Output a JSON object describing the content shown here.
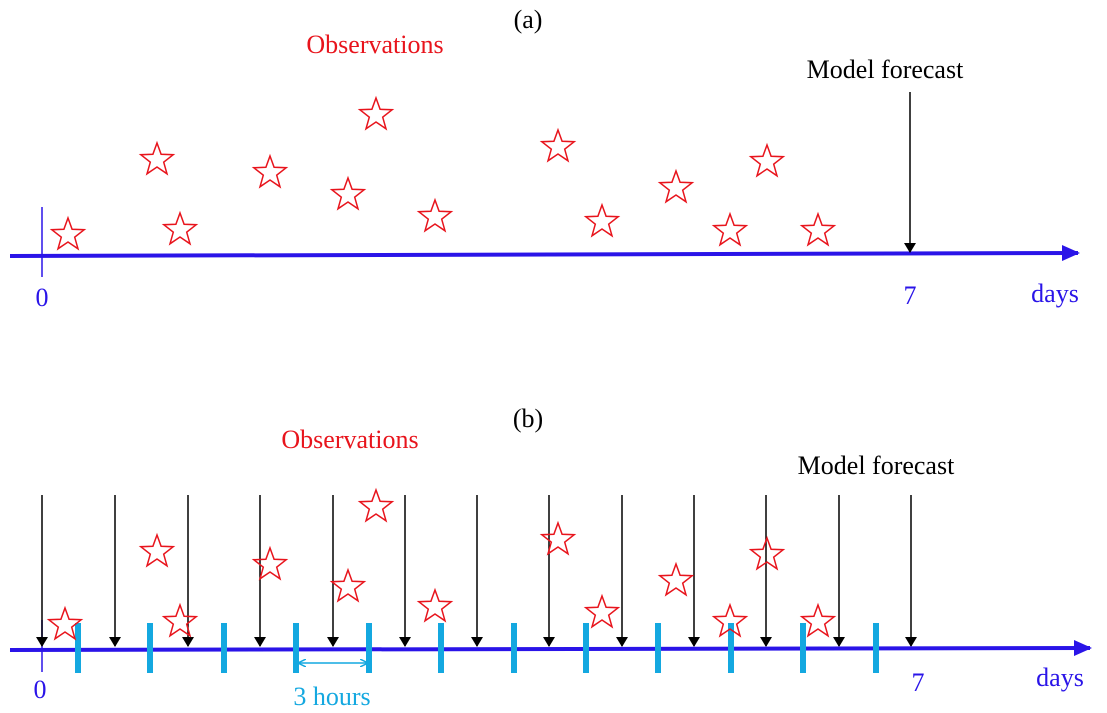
{
  "panel_a": {
    "label": "(a)",
    "observations": "Observations",
    "model_forecast": "Model forecast",
    "axis": {
      "start": "0",
      "end": "7",
      "unit": "days"
    }
  },
  "panel_b": {
    "label": "(b)",
    "observations": "Observations",
    "model_forecast": "Model forecast",
    "axis": {
      "start": "0",
      "end": "7",
      "unit": "days"
    },
    "interval": "3 hours"
  }
}
